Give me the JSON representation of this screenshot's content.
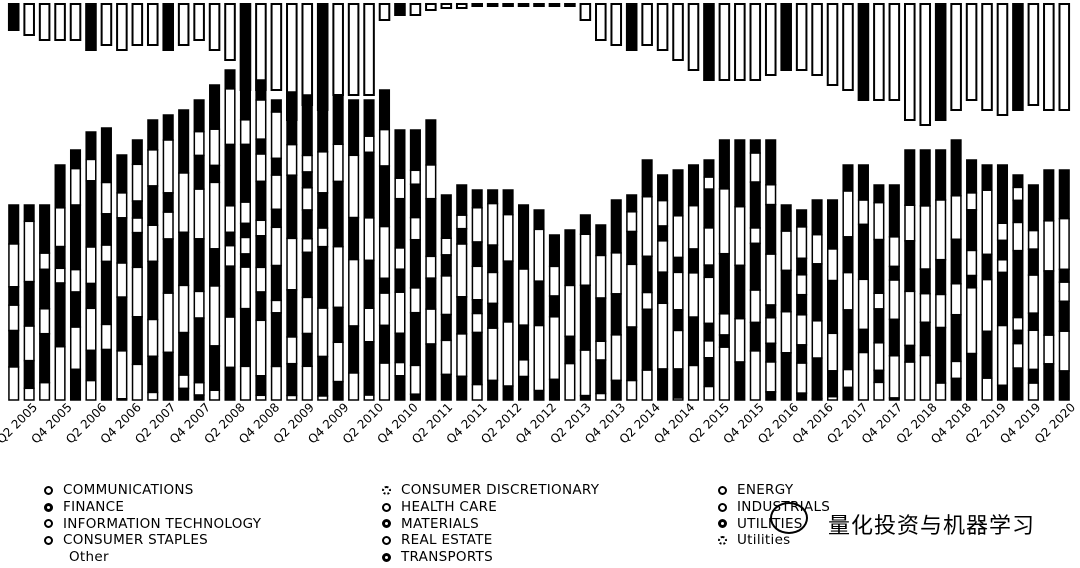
{
  "chart_data": {
    "type": "bar",
    "stacked": true,
    "xlabel": "",
    "ylabel": "",
    "x_tick_labels": [
      "Q2 2005",
      "Q4 2005",
      "Q2 2006",
      "Q4 2006",
      "Q2 2007",
      "Q4 2007",
      "Q2 2008",
      "Q4 2008",
      "Q2 2009",
      "Q4 2009",
      "Q2 2010",
      "Q4 2010",
      "Q2 2011",
      "Q4 2011",
      "Q2 2012",
      "Q4 2012",
      "Q2 2013",
      "Q4 2013",
      "Q2 2014",
      "Q4 2014",
      "Q2 2015",
      "Q4 2015",
      "Q2 2016",
      "Q4 2016",
      "Q2 2017",
      "Q4 2017",
      "Q2 2018",
      "Q4 2018",
      "Q2 2019",
      "Q4 2019",
      "Q2 2020"
    ],
    "bar_tops": [
      205,
      205,
      205,
      165,
      150,
      132,
      128,
      155,
      140,
      120,
      115,
      110,
      100,
      85,
      70,
      60,
      80,
      100,
      92,
      95,
      90,
      95,
      100,
      100,
      90,
      130,
      130,
      120,
      195,
      185,
      190,
      190,
      190,
      205,
      210,
      235,
      230,
      215,
      225,
      200,
      195,
      160,
      175,
      170,
      165,
      160,
      140,
      140,
      140,
      140,
      205,
      210,
      200,
      200,
      165,
      165,
      185,
      185,
      150,
      150,
      150,
      140,
      160,
      165,
      165,
      175,
      185,
      170,
      170
    ],
    "top_row_bottoms": [
      30,
      35,
      40,
      40,
      40,
      50,
      45,
      50,
      45,
      45,
      50,
      45,
      40,
      50,
      60,
      90,
      90,
      90,
      120,
      105,
      110,
      95,
      95,
      95,
      20,
      15,
      15,
      10,
      8,
      8,
      5,
      5,
      5,
      5,
      5,
      5,
      5,
      20,
      40,
      45,
      50,
      45,
      50,
      60,
      70,
      80,
      80,
      80,
      80,
      75,
      70,
      70,
      75,
      85,
      90,
      100,
      100,
      100,
      120,
      125,
      120,
      110,
      100,
      110,
      115,
      110,
      105,
      110,
      110
    ],
    "legend": [
      [
        "COMMUNICATIONS",
        "FINANCE",
        "INFORMATION TECHNOLOGY",
        "CONSUMER STAPLES",
        "Other"
      ],
      [
        "CONSUMER DISCRETIONARY",
        "HEALTH CARE",
        "MATERIALS",
        "REAL ESTATE",
        "TRANSPORTS"
      ],
      [
        "ENERGY",
        "INDUSTRIALS",
        "UTILITIES",
        "Utilities"
      ]
    ],
    "legend_marker_styles": [
      [
        "solid",
        "bold",
        "solid",
        "solid",
        "none"
      ],
      [
        "dotted",
        "solid",
        "bold",
        "solid",
        "bold"
      ],
      [
        "solid",
        "solid",
        "bold",
        "dotted"
      ]
    ],
    "grid": false,
    "colors": {
      "ink": "#000000",
      "paper": "#ffffff"
    }
  },
  "watermark": {
    "text": "量化投资与机器学习"
  }
}
